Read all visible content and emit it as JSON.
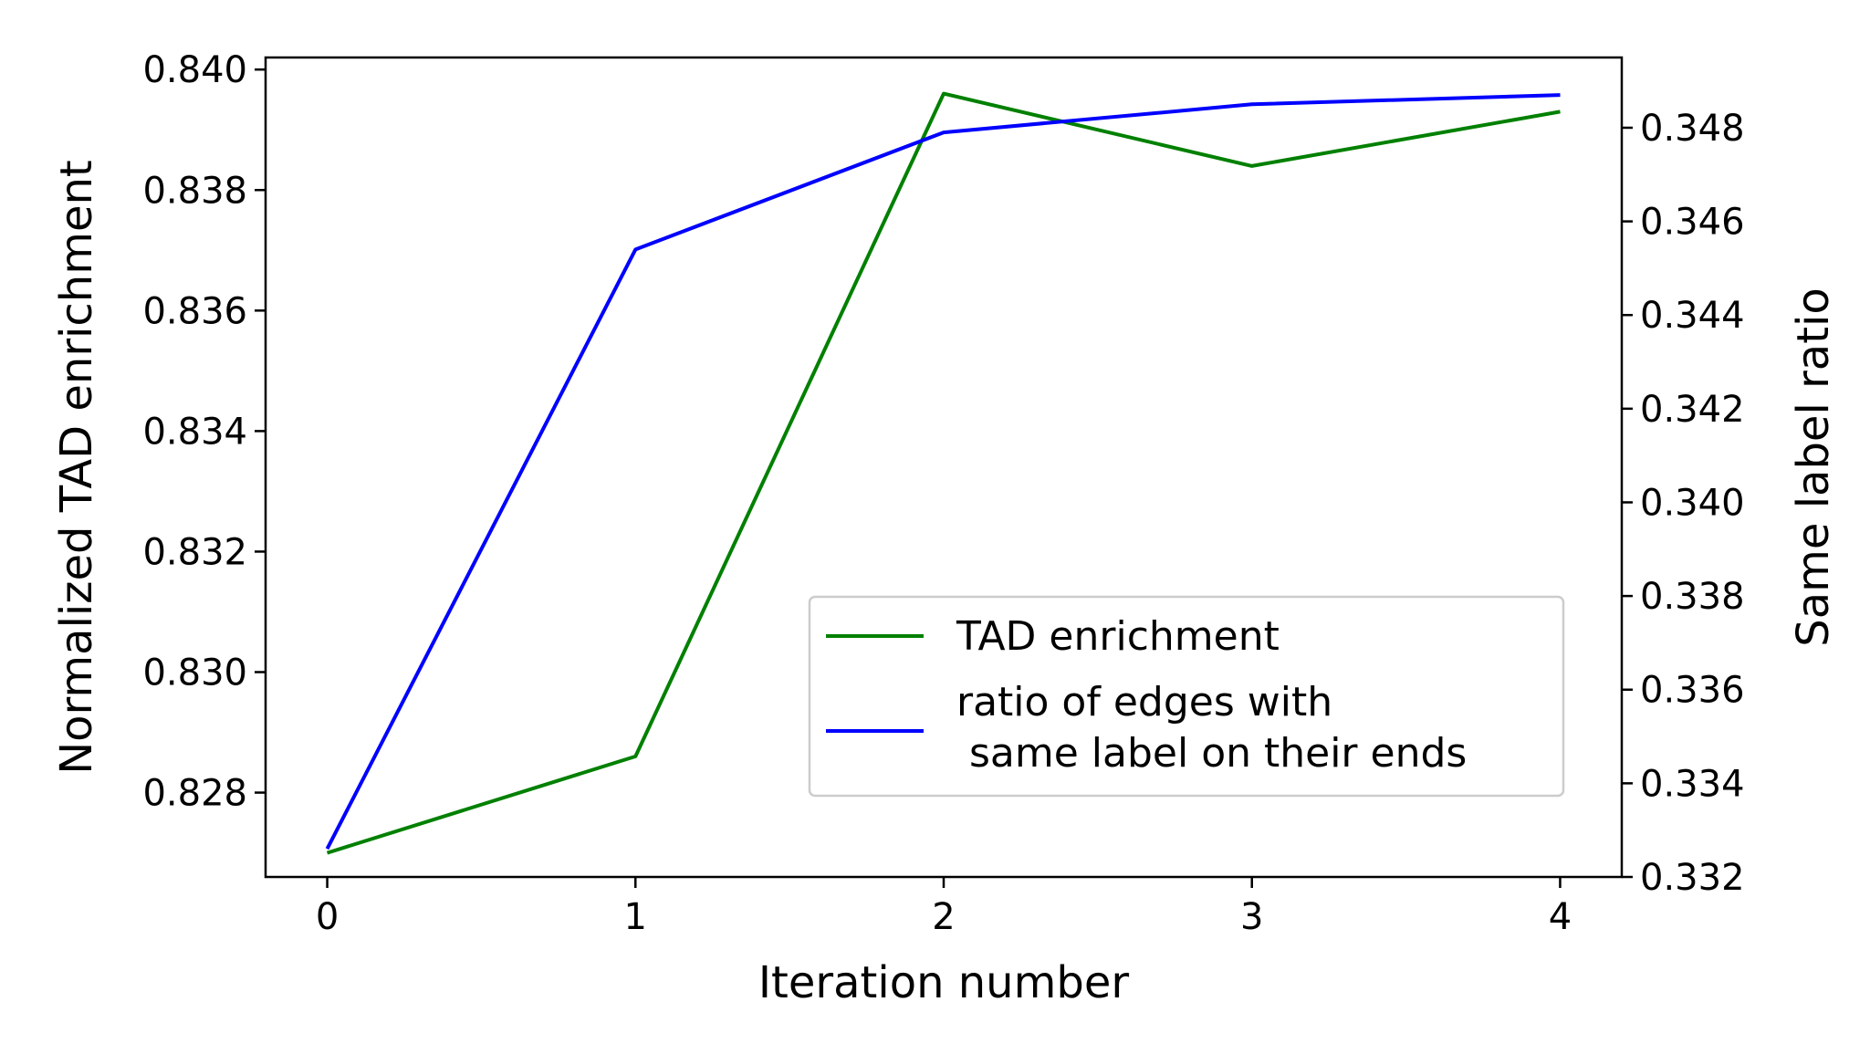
{
  "chart_data": {
    "type": "line",
    "x": [
      0,
      1,
      2,
      3,
      4
    ],
    "xlabel": "Iteration number",
    "xlim": [
      -0.2,
      4.2
    ],
    "xticks": [
      "0",
      "1",
      "2",
      "3",
      "4"
    ],
    "y_left": {
      "label": "Normalized TAD enrichment",
      "lim": [
        0.8266,
        0.8402
      ],
      "ticks": [
        "0.828",
        "0.830",
        "0.832",
        "0.834",
        "0.836",
        "0.838",
        "0.840"
      ]
    },
    "y_right": {
      "label": "Same label ratio",
      "lim": [
        0.332,
        0.3495
      ],
      "ticks": [
        "0.332",
        "0.334",
        "0.336",
        "0.338",
        "0.340",
        "0.342",
        "0.344",
        "0.346",
        "0.348"
      ]
    },
    "series": [
      {
        "name": "TAD enrichment",
        "axis": "left",
        "color": "#008000",
        "values": [
          0.827,
          0.8286,
          0.8396,
          0.8384,
          0.8393
        ]
      },
      {
        "name": "ratio of edges with\n same label on their ends",
        "axis": "right",
        "color": "#0000ff",
        "values": [
          0.3326,
          0.3454,
          0.3479,
          0.3485,
          0.3487
        ]
      }
    ],
    "legend": {
      "placement": "lower-right",
      "entries": [
        {
          "lines": [
            "TAD enrichment"
          ],
          "color": "#008000"
        },
        {
          "lines": [
            "ratio of edges with",
            " same label on their ends"
          ],
          "color": "#0000ff"
        }
      ]
    },
    "grid": false
  }
}
